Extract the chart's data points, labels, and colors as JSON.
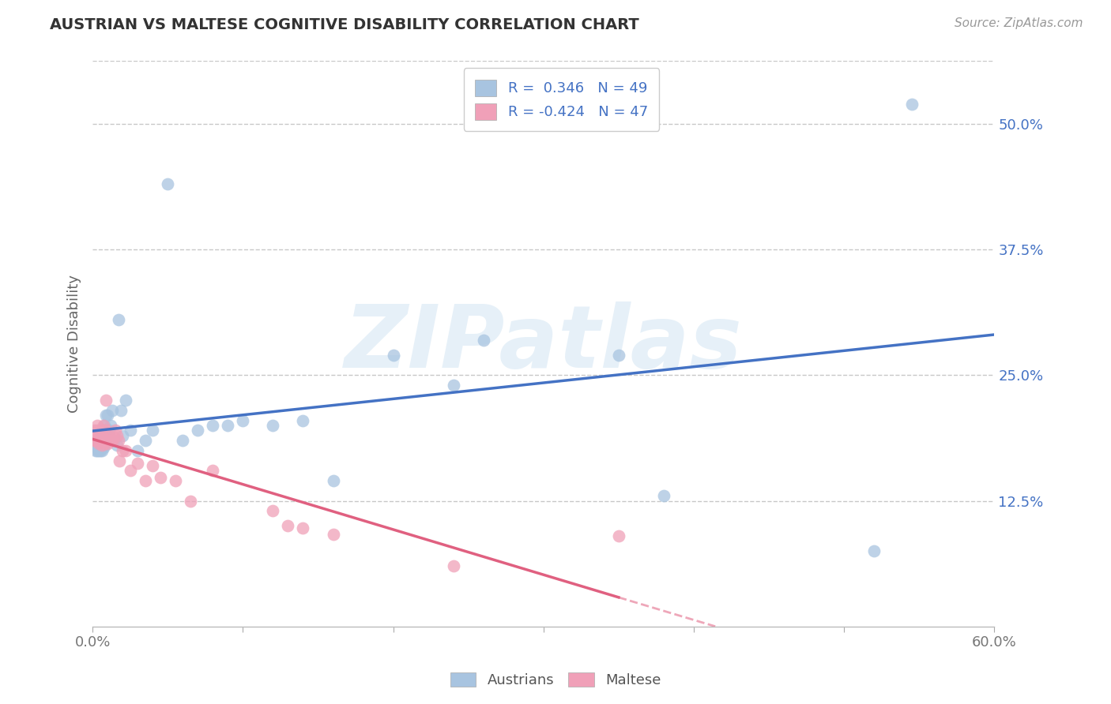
{
  "title": "AUSTRIAN VS MALTESE COGNITIVE DISABILITY CORRELATION CHART",
  "source": "Source: ZipAtlas.com",
  "ylabel": "Cognitive Disability",
  "xlim": [
    0.0,
    0.6
  ],
  "ylim": [
    0.0,
    0.5625
  ],
  "xticks": [
    0.0,
    0.1,
    0.2,
    0.3,
    0.4,
    0.5,
    0.6
  ],
  "ytick_vals": [
    0.125,
    0.25,
    0.375,
    0.5
  ],
  "ytick_labels": [
    "12.5%",
    "25.0%",
    "37.5%",
    "50.0%"
  ],
  "xtick_labels": [
    "0.0%",
    "",
    "",
    "",
    "",
    "",
    "60.0%"
  ],
  "grid_color": "#c8c8c8",
  "background_color": "#ffffff",
  "austrians_color": "#a8c4e0",
  "maltese_color": "#f0a0b8",
  "line_austrians_color": "#4472c4",
  "line_maltese_color": "#e06080",
  "line_maltese_dash_color": "#e8a0b8",
  "austrians_R": 0.346,
  "austrians_N": 49,
  "maltese_R": -0.424,
  "maltese_N": 47,
  "legend_text_color": "#4472c4",
  "austrians_x": [
    0.001,
    0.002,
    0.002,
    0.003,
    0.003,
    0.003,
    0.004,
    0.004,
    0.005,
    0.005,
    0.005,
    0.006,
    0.006,
    0.007,
    0.007,
    0.008,
    0.008,
    0.009,
    0.01,
    0.01,
    0.011,
    0.012,
    0.013,
    0.014,
    0.016,
    0.017,
    0.019,
    0.02,
    0.022,
    0.025,
    0.03,
    0.035,
    0.04,
    0.05,
    0.06,
    0.07,
    0.08,
    0.09,
    0.1,
    0.12,
    0.14,
    0.16,
    0.2,
    0.24,
    0.26,
    0.35,
    0.38,
    0.52,
    0.545
  ],
  "austrians_y": [
    0.18,
    0.175,
    0.185,
    0.175,
    0.178,
    0.182,
    0.175,
    0.185,
    0.178,
    0.175,
    0.192,
    0.182,
    0.175,
    0.178,
    0.195,
    0.18,
    0.2,
    0.21,
    0.192,
    0.21,
    0.195,
    0.2,
    0.215,
    0.185,
    0.18,
    0.305,
    0.215,
    0.19,
    0.225,
    0.195,
    0.175,
    0.185,
    0.195,
    0.44,
    0.185,
    0.195,
    0.2,
    0.2,
    0.205,
    0.2,
    0.205,
    0.145,
    0.27,
    0.24,
    0.285,
    0.27,
    0.13,
    0.075,
    0.52
  ],
  "maltese_x": [
    0.001,
    0.001,
    0.002,
    0.002,
    0.003,
    0.003,
    0.003,
    0.004,
    0.004,
    0.005,
    0.005,
    0.005,
    0.006,
    0.006,
    0.007,
    0.007,
    0.007,
    0.008,
    0.008,
    0.009,
    0.009,
    0.01,
    0.01,
    0.011,
    0.012,
    0.013,
    0.014,
    0.015,
    0.016,
    0.017,
    0.018,
    0.02,
    0.022,
    0.025,
    0.03,
    0.035,
    0.04,
    0.045,
    0.055,
    0.065,
    0.08,
    0.12,
    0.13,
    0.14,
    0.16,
    0.24,
    0.35
  ],
  "maltese_y": [
    0.185,
    0.195,
    0.185,
    0.19,
    0.185,
    0.195,
    0.2,
    0.182,
    0.185,
    0.188,
    0.185,
    0.192,
    0.18,
    0.188,
    0.185,
    0.195,
    0.2,
    0.182,
    0.188,
    0.195,
    0.225,
    0.182,
    0.185,
    0.185,
    0.185,
    0.185,
    0.188,
    0.195,
    0.19,
    0.185,
    0.165,
    0.175,
    0.175,
    0.155,
    0.162,
    0.145,
    0.16,
    0.148,
    0.145,
    0.125,
    0.155,
    0.115,
    0.1,
    0.098,
    0.092,
    0.06,
    0.09
  ],
  "watermark_text": "ZIPatlas",
  "watermark_color": "#c8dff0",
  "watermark_alpha": 0.45,
  "scatter_size": 130,
  "scatter_alpha": 0.75
}
